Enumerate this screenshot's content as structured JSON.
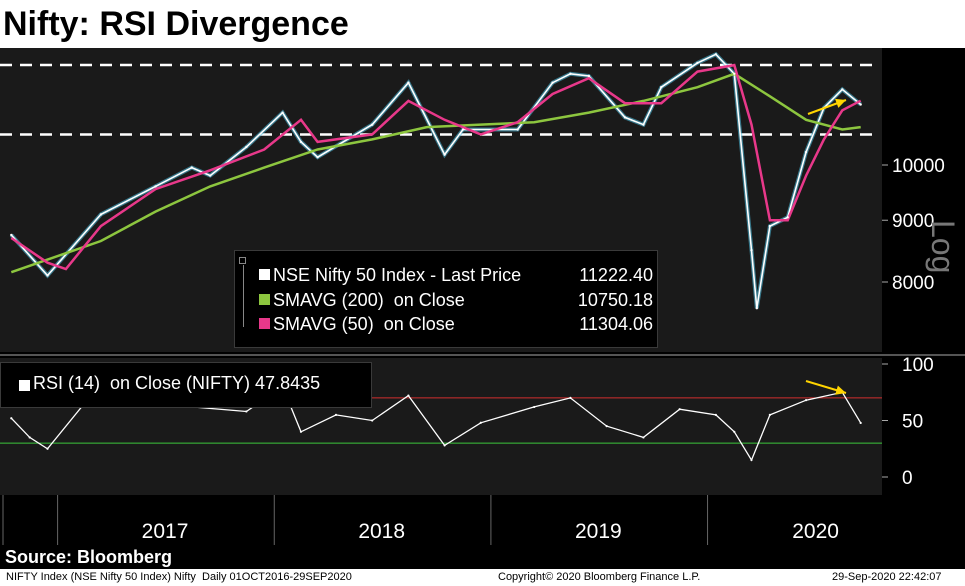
{
  "title": "Nifty: RSI Divergence",
  "source": "Source: Bloomberg",
  "footer": {
    "ticker_line": "NIFTY Index (NSE Nifty 50 Index) Nifty  Daily 01OCT2016-29SEP2020",
    "copyright": "Copyright© 2020 Bloomberg Finance L.P.",
    "timestamp": "29-Sep-2020 22:42:07"
  },
  "legend": [
    {
      "label": "NSE Nifty 50 Index - Last Price",
      "value": "11222.40",
      "color": "#ffffff"
    },
    {
      "label": "SMAVG (200)  on Close",
      "value": "10750.18",
      "color": "#8dc63f"
    },
    {
      "label": "SMAVG (50)  on Close",
      "value": "11304.06",
      "color": "#e8388a"
    }
  ],
  "rsi_legend": {
    "label": "RSI (14)  on Close (NIFTY) 47.8435",
    "color": "#ffffff"
  },
  "side_label": "Log",
  "colors": {
    "price": "#ffffff",
    "price_glow": "#4fc3e6",
    "sma200": "#8dc63f",
    "sma50": "#e8388a",
    "annotation": "#ffd400",
    "rsi_upper": "#d22f2f",
    "rsi_lower": "#3cc83c",
    "panel_bg": "#1a1a1a"
  },
  "chart_data": [
    {
      "type": "line",
      "title": "Nifty: RSI Divergence",
      "x_tick_labels": [
        "2017",
        "2018",
        "2019",
        "2020"
      ],
      "y_scale": "log",
      "ylim": [
        7000,
        12500
      ],
      "y_ticks": [
        8000,
        9000,
        10000
      ],
      "y_tick_labels": [
        "8000",
        "9000",
        "10000"
      ],
      "reference_lines": [
        {
          "y": 10600,
          "style": "dashed"
        },
        {
          "y": 12100,
          "style": "dashed"
        }
      ],
      "annotation": "yellow arrow pointing to the rising price highs in 2020",
      "series": [
        {
          "name": "NSE Nifty 50 Index - Last Price",
          "last": 11222.4,
          "x": [
            "2016-10",
            "2016-12",
            "2017-03",
            "2017-06",
            "2017-08",
            "2017-09",
            "2017-11",
            "2018-01",
            "2018-02",
            "2018-03",
            "2018-06",
            "2018-08",
            "2018-10",
            "2018-11",
            "2019-02",
            "2019-04",
            "2019-05",
            "2019-06",
            "2019-08",
            "2019-09",
            "2019-10",
            "2019-12",
            "2020-01",
            "2020-02",
            "2020-03",
            "2020-03-24",
            "2020-04",
            "2020-05",
            "2020-06",
            "2020-07",
            "2020-08",
            "2020-09"
          ],
          "values": [
            8750,
            8100,
            9100,
            9600,
            9950,
            9800,
            10350,
            11050,
            10450,
            10150,
            10800,
            11700,
            10200,
            10700,
            10700,
            11700,
            11900,
            11850,
            10950,
            10800,
            11600,
            12150,
            12350,
            11900,
            8500,
            7610,
            8900,
            9050,
            10250,
            11150,
            11550,
            11222
          ]
        },
        {
          "name": "SMAVG (200)  on Close",
          "last": 10750.18,
          "x": [
            "2016-10",
            "2017-03",
            "2017-06",
            "2017-09",
            "2017-12",
            "2018-03",
            "2018-06",
            "2018-09",
            "2018-12",
            "2019-03",
            "2019-06",
            "2019-09",
            "2019-12",
            "2020-02",
            "2020-04",
            "2020-06",
            "2020-08",
            "2020-09"
          ],
          "values": [
            8150,
            8650,
            9150,
            9600,
            9950,
            10300,
            10500,
            10750,
            10800,
            10850,
            11050,
            11300,
            11600,
            11900,
            11400,
            10900,
            10700,
            10750
          ]
        },
        {
          "name": "SMAVG (50)  on Close",
          "last": 11304.06,
          "x": [
            "2016-10",
            "2016-12",
            "2017-01",
            "2017-03",
            "2017-06",
            "2017-09",
            "2017-12",
            "2018-02",
            "2018-03",
            "2018-06",
            "2018-08",
            "2018-10",
            "2018-12",
            "2019-02",
            "2019-04",
            "2019-06",
            "2019-08",
            "2019-10",
            "2019-12",
            "2020-02",
            "2020-03",
            "2020-04",
            "2020-05",
            "2020-06",
            "2020-07",
            "2020-08",
            "2020-09"
          ],
          "values": [
            8700,
            8300,
            8200,
            8900,
            9550,
            9900,
            10300,
            10900,
            10450,
            10600,
            11300,
            10900,
            10600,
            10850,
            11450,
            11800,
            11250,
            11250,
            11950,
            12100,
            10800,
            9000,
            9000,
            9800,
            10500,
            11100,
            11304
          ]
        }
      ]
    },
    {
      "type": "line",
      "title": "RSI (14)  on Close (NIFTY) 47.8435",
      "x_tick_labels": [
        "2017",
        "2018",
        "2019",
        "2020"
      ],
      "ylim": [
        0,
        100
      ],
      "y_ticks": [
        0,
        50,
        100
      ],
      "y_tick_labels": [
        "0",
        "50",
        "100"
      ],
      "reference_lines": [
        {
          "y": 70
        },
        {
          "y": 30
        }
      ],
      "annotation": "yellow arrow pointing to the falling RSI highs in 2020",
      "series": [
        {
          "name": "RSI (14)  on Close (NIFTY)",
          "last": 47.8435,
          "x": [
            "2016-10",
            "2016-11",
            "2016-12",
            "2017-02",
            "2017-05",
            "2017-08",
            "2017-11",
            "2018-01",
            "2018-02",
            "2018-04",
            "2018-06",
            "2018-08",
            "2018-10",
            "2018-12",
            "2019-03",
            "2019-05",
            "2019-07",
            "2019-09",
            "2019-11",
            "2020-01",
            "2020-02",
            "2020-03",
            "2020-04",
            "2020-06",
            "2020-08",
            "2020-09"
          ],
          "values": [
            52,
            35,
            25,
            65,
            70,
            62,
            58,
            80,
            40,
            55,
            50,
            72,
            28,
            48,
            62,
            70,
            45,
            35,
            60,
            55,
            40,
            15,
            55,
            68,
            75,
            47.84
          ]
        }
      ]
    }
  ]
}
